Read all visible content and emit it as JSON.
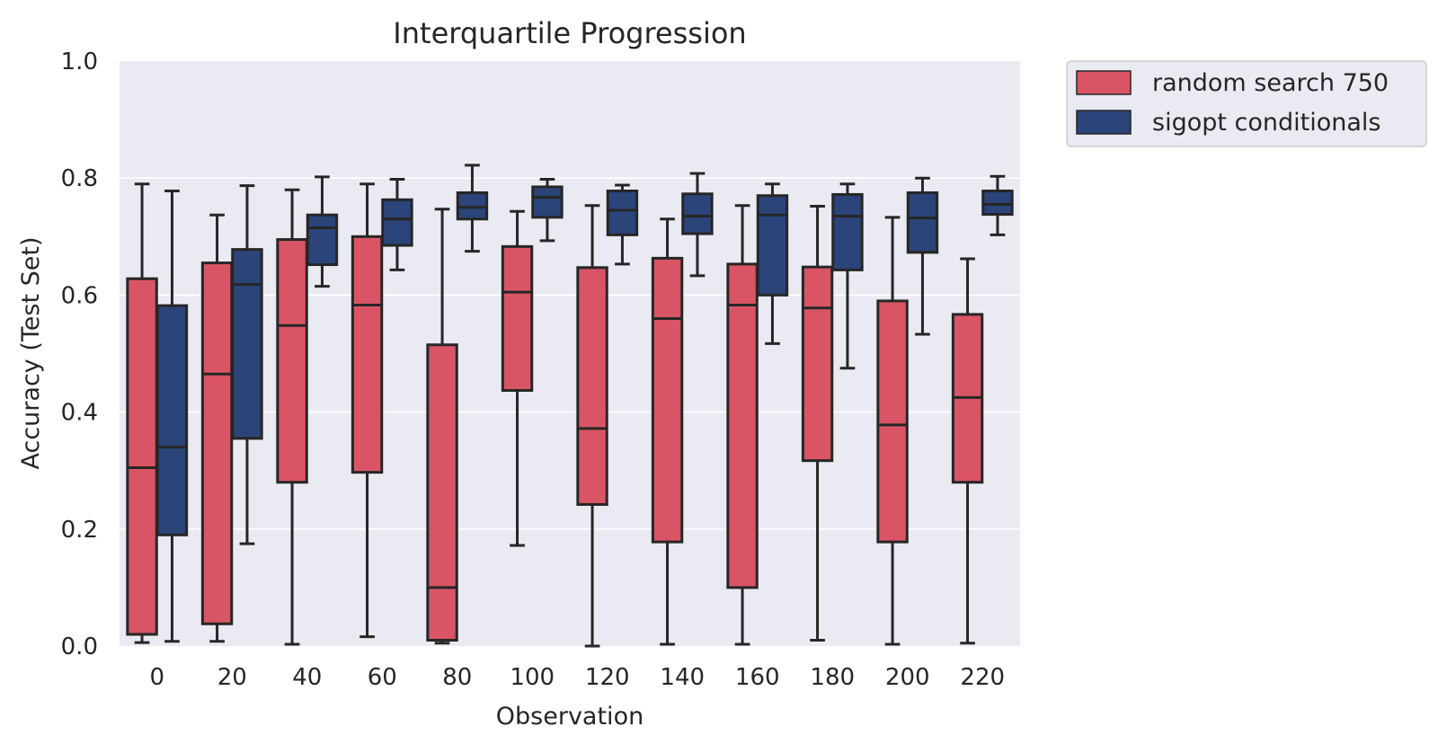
{
  "chart_data": {
    "type": "box",
    "title": "Interquartile Progression",
    "xlabel": "Observation",
    "ylabel": "Accuracy (Test Set)",
    "ylim": [
      0.0,
      1.0
    ],
    "yticks": [
      "0.0",
      "0.2",
      "0.4",
      "0.6",
      "0.8",
      "1.0"
    ],
    "categories": [
      "0",
      "20",
      "40",
      "60",
      "80",
      "100",
      "120",
      "140",
      "160",
      "180",
      "200",
      "220"
    ],
    "grid": true,
    "legend_position": "outside-upper-right",
    "background": "#eaeaf2",
    "series": [
      {
        "name": "random search 750",
        "color": "#d95565",
        "boxes": [
          {
            "whislo": 0.006,
            "q1": 0.02,
            "med": 0.305,
            "q3": 0.628,
            "whishi": 0.79
          },
          {
            "whislo": 0.008,
            "q1": 0.038,
            "med": 0.465,
            "q3": 0.655,
            "whishi": 0.737
          },
          {
            "whislo": 0.003,
            "q1": 0.28,
            "med": 0.548,
            "q3": 0.695,
            "whishi": 0.78
          },
          {
            "whislo": 0.016,
            "q1": 0.297,
            "med": 0.583,
            "q3": 0.7,
            "whishi": 0.79
          },
          {
            "whislo": 0.005,
            "q1": 0.01,
            "med": 0.1,
            "q3": 0.515,
            "whishi": 0.747
          },
          {
            "whislo": 0.172,
            "q1": 0.437,
            "med": 0.605,
            "q3": 0.683,
            "whishi": 0.743
          },
          {
            "whislo": 0.0,
            "q1": 0.242,
            "med": 0.372,
            "q3": 0.647,
            "whishi": 0.753
          },
          {
            "whislo": 0.003,
            "q1": 0.178,
            "med": 0.56,
            "q3": 0.663,
            "whishi": 0.73
          },
          {
            "whislo": 0.003,
            "q1": 0.1,
            "med": 0.583,
            "q3": 0.653,
            "whishi": 0.753
          },
          {
            "whislo": 0.01,
            "q1": 0.317,
            "med": 0.578,
            "q3": 0.648,
            "whishi": 0.752
          },
          {
            "whislo": 0.003,
            "q1": 0.178,
            "med": 0.378,
            "q3": 0.59,
            "whishi": 0.733
          },
          {
            "whislo": 0.005,
            "q1": 0.28,
            "med": 0.425,
            "q3": 0.567,
            "whishi": 0.662
          }
        ]
      },
      {
        "name": "sigopt conditionals",
        "color": "#2b4479",
        "boxes": [
          {
            "whislo": 0.008,
            "q1": 0.19,
            "med": 0.34,
            "q3": 0.582,
            "whishi": 0.778
          },
          {
            "whislo": 0.175,
            "q1": 0.355,
            "med": 0.618,
            "q3": 0.678,
            "whishi": 0.787
          },
          {
            "whislo": 0.615,
            "q1": 0.652,
            "med": 0.715,
            "q3": 0.737,
            "whishi": 0.802
          },
          {
            "whislo": 0.643,
            "q1": 0.685,
            "med": 0.73,
            "q3": 0.763,
            "whishi": 0.798
          },
          {
            "whislo": 0.675,
            "q1": 0.73,
            "med": 0.75,
            "q3": 0.775,
            "whishi": 0.822
          },
          {
            "whislo": 0.693,
            "q1": 0.733,
            "med": 0.767,
            "q3": 0.785,
            "whishi": 0.798
          },
          {
            "whislo": 0.653,
            "q1": 0.703,
            "med": 0.745,
            "q3": 0.778,
            "whishi": 0.788
          },
          {
            "whislo": 0.633,
            "q1": 0.705,
            "med": 0.735,
            "q3": 0.773,
            "whishi": 0.808
          },
          {
            "whislo": 0.517,
            "q1": 0.6,
            "med": 0.737,
            "q3": 0.77,
            "whishi": 0.79
          },
          {
            "whislo": 0.475,
            "q1": 0.643,
            "med": 0.735,
            "q3": 0.772,
            "whishi": 0.79
          },
          {
            "whislo": 0.533,
            "q1": 0.673,
            "med": 0.732,
            "q3": 0.775,
            "whishi": 0.8
          },
          {
            "whislo": 0.703,
            "q1": 0.738,
            "med": 0.755,
            "q3": 0.778,
            "whishi": 0.803
          }
        ]
      }
    ]
  }
}
